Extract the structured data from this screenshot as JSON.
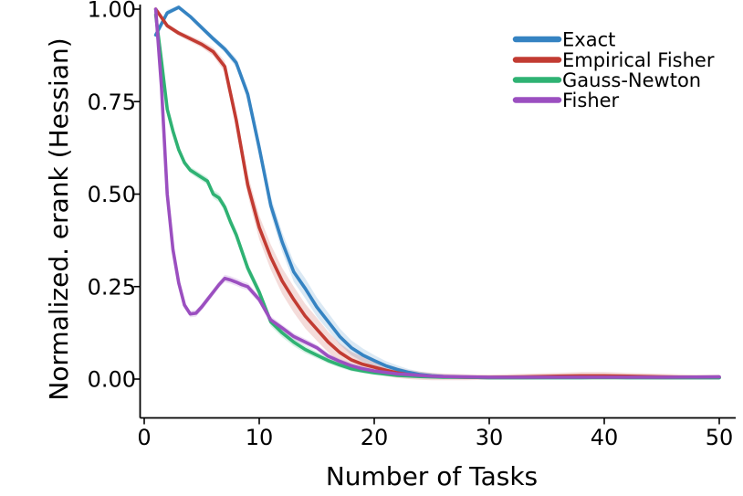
{
  "background": "#ffffff",
  "chart_data": {
    "type": "line",
    "title": "",
    "xlabel": "Number of Tasks",
    "ylabel": "Normalized. erank (Hessian)",
    "xlim": [
      0,
      50
    ],
    "ylim": [
      0.0,
      1.0
    ],
    "grid": false,
    "legend_position": "upper right",
    "xtick_values": [
      0,
      10,
      20,
      30,
      40,
      50
    ],
    "xtick_labels": [
      "0",
      "10",
      "20",
      "30",
      "40",
      "50"
    ],
    "ytick_values": [
      0.0,
      0.25,
      0.5,
      0.75,
      1.0
    ],
    "ytick_labels": [
      "0.00",
      "0.25",
      "0.50",
      "0.75",
      "1.00"
    ],
    "series": [
      {
        "name": "Exact",
        "color": "#3583C2",
        "x": [
          1,
          2,
          3,
          4,
          5,
          6,
          7,
          8,
          9,
          10,
          11,
          12,
          13,
          14,
          15,
          16,
          17,
          18,
          19,
          20,
          21,
          22,
          23,
          24,
          25,
          26,
          28,
          30,
          32,
          35,
          38,
          40,
          42,
          45,
          48,
          50
        ],
        "y": [
          0.93,
          0.99,
          1.005,
          0.98,
          0.95,
          0.92,
          0.892,
          0.855,
          0.77,
          0.625,
          0.47,
          0.37,
          0.29,
          0.245,
          0.195,
          0.155,
          0.115,
          0.085,
          0.065,
          0.05,
          0.036,
          0.026,
          0.018,
          0.012,
          0.009,
          0.007,
          0.005,
          0.004,
          0.004,
          0.004,
          0.004,
          0.005,
          0.004,
          0.004,
          0.004,
          0.004
        ],
        "band": [
          0.012,
          0.008,
          0.006,
          0.006,
          0.007,
          0.008,
          0.009,
          0.012,
          0.016,
          0.02,
          0.024,
          0.026,
          0.027,
          0.027,
          0.026,
          0.024,
          0.022,
          0.02,
          0.018,
          0.015,
          0.013,
          0.011,
          0.009,
          0.008,
          0.007,
          0.006,
          0.005,
          0.004,
          0.004,
          0.004,
          0.004,
          0.004,
          0.004,
          0.004,
          0.004,
          0.004
        ]
      },
      {
        "name": "Empirical Fisher",
        "color": "#C23B32",
        "x": [
          1,
          2,
          3,
          4,
          5,
          6,
          7,
          8,
          9,
          10,
          11,
          12,
          13,
          14,
          15,
          16,
          17,
          18,
          19,
          20,
          21,
          22,
          23,
          24,
          25,
          26,
          28,
          30,
          33,
          36,
          38,
          40,
          42,
          45,
          48,
          50
        ],
        "y": [
          1.0,
          0.955,
          0.935,
          0.92,
          0.905,
          0.885,
          0.845,
          0.7,
          0.525,
          0.41,
          0.33,
          0.265,
          0.215,
          0.17,
          0.135,
          0.1,
          0.072,
          0.052,
          0.04,
          0.032,
          0.024,
          0.017,
          0.012,
          0.009,
          0.007,
          0.006,
          0.005,
          0.005,
          0.006,
          0.008,
          0.009,
          0.009,
          0.008,
          0.006,
          0.005,
          0.005
        ],
        "band": [
          0.004,
          0.006,
          0.007,
          0.008,
          0.009,
          0.011,
          0.015,
          0.022,
          0.028,
          0.032,
          0.034,
          0.035,
          0.035,
          0.033,
          0.031,
          0.028,
          0.025,
          0.022,
          0.02,
          0.018,
          0.016,
          0.014,
          0.012,
          0.011,
          0.01,
          0.009,
          0.008,
          0.007,
          0.008,
          0.009,
          0.01,
          0.01,
          0.009,
          0.008,
          0.007,
          0.007
        ]
      },
      {
        "name": "Gauss-Newton",
        "color": "#2FB273",
        "x": [
          1,
          1.5,
          2,
          2.5,
          3,
          3.5,
          4,
          5,
          5.5,
          6,
          6.5,
          7,
          7.5,
          8,
          9,
          10,
          11,
          12,
          13,
          14,
          15,
          16,
          17,
          18,
          19,
          20,
          22,
          24,
          26,
          28,
          30,
          35,
          40,
          45,
          50
        ],
        "y": [
          0.985,
          0.86,
          0.73,
          0.67,
          0.62,
          0.585,
          0.565,
          0.545,
          0.535,
          0.5,
          0.49,
          0.465,
          0.425,
          0.39,
          0.3,
          0.235,
          0.155,
          0.125,
          0.1,
          0.08,
          0.065,
          0.05,
          0.038,
          0.028,
          0.022,
          0.017,
          0.01,
          0.007,
          0.005,
          0.005,
          0.004,
          0.004,
          0.004,
          0.004,
          0.004
        ],
        "band": [
          0.008,
          0.008,
          0.008,
          0.008,
          0.008,
          0.008,
          0.009,
          0.01,
          0.01,
          0.011,
          0.012,
          0.012,
          0.013,
          0.013,
          0.013,
          0.013,
          0.012,
          0.012,
          0.011,
          0.01,
          0.009,
          0.008,
          0.007,
          0.007,
          0.006,
          0.006,
          0.005,
          0.005,
          0.004,
          0.004,
          0.004,
          0.004,
          0.004,
          0.004,
          0.004
        ]
      },
      {
        "name": "Fisher",
        "color": "#9B4FC0",
        "x": [
          1,
          1.5,
          2,
          2.5,
          3,
          3.5,
          4,
          4.5,
          5,
          5.5,
          6,
          6.5,
          7,
          7.5,
          8,
          8.5,
          9,
          10,
          11,
          12,
          13,
          14,
          15,
          16,
          17,
          18,
          19,
          20,
          21,
          22,
          23,
          24,
          25,
          26,
          28,
          30,
          35,
          40,
          45,
          50
        ],
        "y": [
          1.0,
          0.79,
          0.5,
          0.35,
          0.26,
          0.2,
          0.176,
          0.178,
          0.195,
          0.215,
          0.235,
          0.255,
          0.272,
          0.268,
          0.262,
          0.255,
          0.25,
          0.215,
          0.16,
          0.138,
          0.115,
          0.1,
          0.085,
          0.062,
          0.048,
          0.036,
          0.028,
          0.022,
          0.018,
          0.014,
          0.012,
          0.01,
          0.008,
          0.007,
          0.006,
          0.005,
          0.005,
          0.005,
          0.005,
          0.006
        ],
        "band": [
          0.006,
          0.008,
          0.01,
          0.01,
          0.009,
          0.009,
          0.009,
          0.009,
          0.009,
          0.009,
          0.009,
          0.009,
          0.01,
          0.01,
          0.01,
          0.01,
          0.01,
          0.01,
          0.01,
          0.009,
          0.009,
          0.009,
          0.008,
          0.008,
          0.007,
          0.007,
          0.006,
          0.006,
          0.005,
          0.005,
          0.005,
          0.005,
          0.004,
          0.004,
          0.004,
          0.004,
          0.004,
          0.004,
          0.004,
          0.004
        ]
      }
    ],
    "legend": [
      {
        "label": "Exact",
        "color": "#3583C2"
      },
      {
        "label": "Empirical Fisher",
        "color": "#C23B32"
      },
      {
        "label": "Gauss-Newton",
        "color": "#2FB273"
      },
      {
        "label": "Fisher",
        "color": "#9B4FC0"
      }
    ]
  }
}
